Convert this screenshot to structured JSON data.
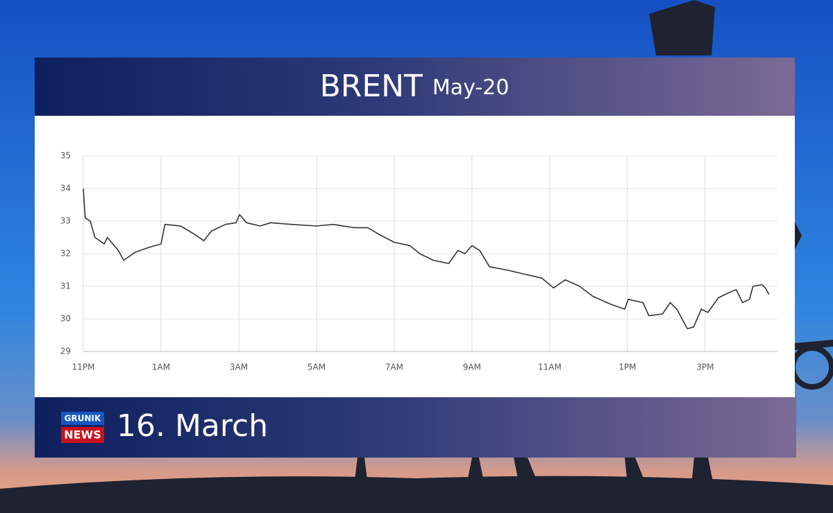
{
  "chart_data": {
    "type": "line",
    "title": "BRENT",
    "subtitle": "May-20",
    "x": [
      0,
      0.05,
      0.18,
      0.3,
      0.54,
      0.62,
      0.9,
      1.04,
      1.34,
      1.7,
      2.0,
      2.1,
      2.5,
      2.86,
      3.1,
      3.3,
      3.66,
      3.93,
      4.02,
      4.2,
      4.55,
      4.82,
      5.36,
      6.0,
      6.43,
      6.96,
      7.32,
      7.6,
      8.0,
      8.4,
      8.66,
      9.0,
      9.4,
      9.64,
      9.82,
      10.0,
      10.2,
      10.45,
      10.9,
      11.43,
      11.8,
      12.1,
      12.4,
      12.77,
      13.1,
      13.57,
      13.93,
      14.02,
      14.4,
      14.55,
      14.9,
      15.1,
      15.27,
      15.54,
      15.7,
      15.9,
      16.07,
      16.34,
      16.6,
      16.8,
      16.96,
      17.14,
      17.23,
      17.46,
      17.55,
      17.64
    ],
    "values": [
      34.0,
      33.1,
      33.0,
      32.5,
      32.3,
      32.5,
      32.1,
      31.8,
      32.05,
      32.2,
      32.3,
      32.9,
      32.85,
      32.6,
      32.4,
      32.7,
      32.9,
      32.95,
      33.2,
      32.95,
      32.85,
      32.95,
      32.9,
      32.85,
      32.9,
      32.8,
      32.8,
      32.6,
      32.35,
      32.25,
      32.0,
      31.8,
      31.7,
      32.1,
      32.0,
      32.25,
      32.1,
      31.6,
      31.5,
      31.35,
      31.25,
      30.95,
      31.2,
      31.0,
      30.7,
      30.45,
      30.3,
      30.6,
      30.5,
      30.1,
      30.15,
      30.5,
      30.3,
      29.7,
      29.75,
      30.3,
      30.2,
      30.65,
      30.8,
      30.9,
      30.5,
      30.6,
      31.0,
      31.05,
      30.95,
      30.75
    ],
    "color": "#333333",
    "xlim": [
      0,
      17.86
    ],
    "xticks": [
      {
        "value": 0,
        "label": "11PM"
      },
      {
        "value": 2,
        "label": "1AM"
      },
      {
        "value": 4,
        "label": "3AM"
      },
      {
        "value": 6,
        "label": "5AM"
      },
      {
        "value": 8,
        "label": "7AM"
      },
      {
        "value": 10,
        "label": "9AM"
      },
      {
        "value": 12,
        "label": "11AM"
      },
      {
        "value": 14,
        "label": "1PM"
      },
      {
        "value": 16,
        "label": "3PM"
      }
    ],
    "ylim": [
      29,
      35
    ],
    "yticks": [
      29,
      30,
      31,
      32,
      33,
      34,
      35
    ],
    "grid": true
  },
  "brand": {
    "line1": "GRUNIK",
    "line2": "NEWS"
  },
  "date": "16. March"
}
